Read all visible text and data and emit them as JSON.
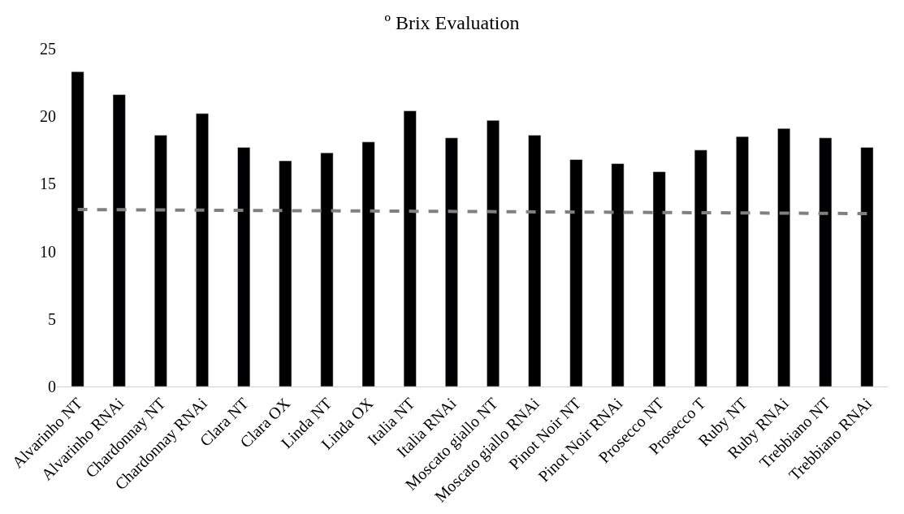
{
  "chart_data": {
    "type": "bar",
    "title": "º Brix Evaluation",
    "categories": [
      "Alvarinho NT",
      "Alvarinho RNAi",
      "Chardonnay NT",
      "Chardonnay RNAi",
      "Clara NT",
      "Clara OX",
      "Linda NT",
      "Linda OX",
      "Italia NT",
      "Italia RNAi",
      "Moscato giallo NT",
      "Moscato giallo RNAi",
      "Pinot Noir NT",
      "Pinot Noir RNAi",
      "Prosecco NT",
      "Prosecco T",
      "Ruby NT",
      "Ruby RNAi",
      "Trebbiano NT",
      "Trebbiano RNAi"
    ],
    "series": [
      {
        "color": "#000000",
        "values": [
          23.3,
          21.6,
          18.6,
          20.2,
          17.7,
          16.7,
          17.3,
          18.1,
          20.4,
          18.4,
          19.7,
          18.6,
          16.8,
          16.5,
          15.9,
          17.5,
          18.5,
          19.1,
          18.4,
          17.7
        ]
      },
      {
        "type": "line",
        "color": "#808080",
        "line_style": "dashed",
        "x": [
          "Alvarinho NT",
          "Trebbiano RNAi"
        ],
        "values": [
          13.1,
          12.8
        ]
      }
    ],
    "ylim": [
      0,
      25
    ],
    "yticks": [
      0,
      5,
      10,
      15,
      20,
      25
    ]
  }
}
